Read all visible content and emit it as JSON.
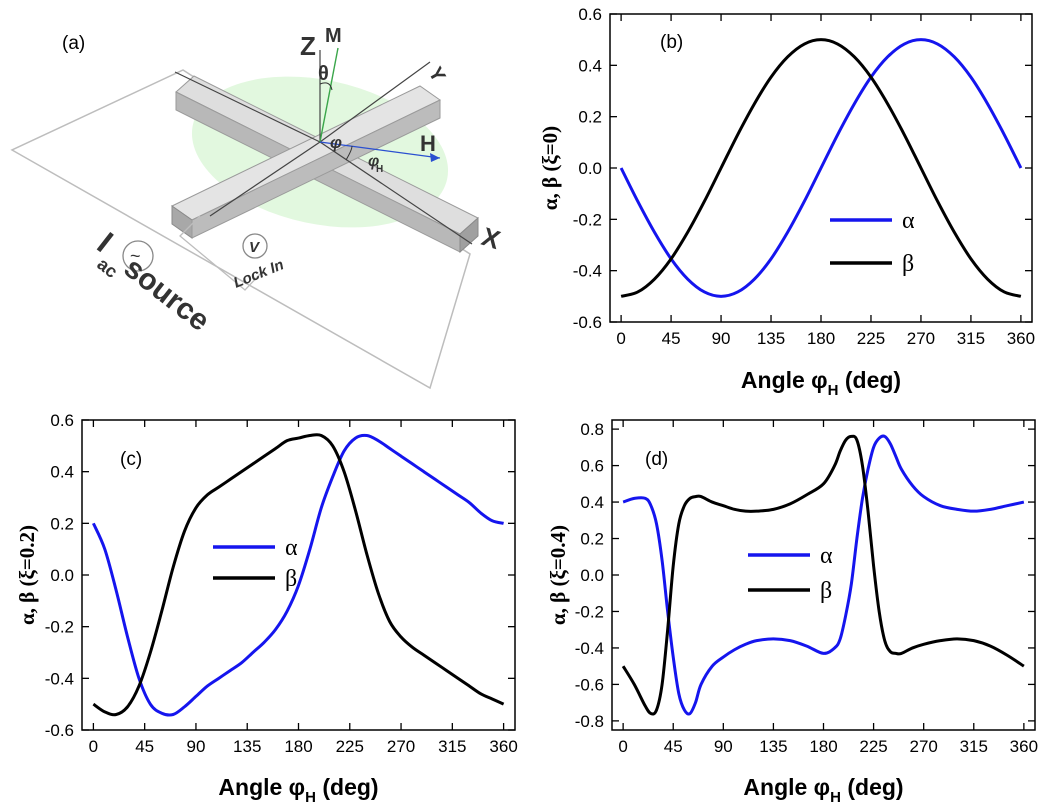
{
  "panel_a": {
    "label": "(a)",
    "axis_z": "Z",
    "magnetization": "M",
    "theta": "θ",
    "axis_y": "Y",
    "field": "H",
    "phi": "φ",
    "phi_h": "φ",
    "phi_h_sub": "H",
    "axis_x": "X",
    "voltmeter": "V",
    "lock_in": "Lock In",
    "source_i": "I",
    "source_sub": "ac",
    "source_word": "source",
    "tilde": "~"
  },
  "colors": {
    "alpha": "#1515ee",
    "beta": "#000000",
    "disc": "#dff7dc",
    "bar": "#c9c9c9"
  },
  "chart_data": [
    {
      "id": "b",
      "type": "line",
      "label": "(b)",
      "xlabel": "Angle φ",
      "xlabel_sub": "H",
      "xlabel_unit": " (deg)",
      "ylabel": "α, β (ξ=0)",
      "xlim": [
        -10,
        370
      ],
      "ylim": [
        -0.6,
        0.6
      ],
      "xticks": [
        "0",
        "45",
        "90",
        "135",
        "180",
        "225",
        "270",
        "315",
        "360"
      ],
      "yticks": [
        "-0.6",
        "-0.4",
        "-0.2",
        "0.0",
        "0.2",
        "0.4",
        "0.6"
      ],
      "legend": [
        "α",
        "β"
      ],
      "x": [
        0,
        15,
        30,
        45,
        60,
        75,
        90,
        105,
        120,
        135,
        150,
        165,
        180,
        195,
        210,
        225,
        240,
        255,
        270,
        285,
        300,
        315,
        330,
        345,
        360
      ],
      "series": [
        {
          "name": "α",
          "values": [
            0.0,
            -0.13,
            -0.25,
            -0.354,
            -0.433,
            -0.483,
            -0.5,
            -0.483,
            -0.433,
            -0.354,
            -0.25,
            -0.13,
            0.0,
            0.13,
            0.25,
            0.354,
            0.433,
            0.483,
            0.5,
            0.483,
            0.433,
            0.354,
            0.25,
            0.13,
            0.0
          ]
        },
        {
          "name": "β",
          "values": [
            -0.5,
            -0.483,
            -0.433,
            -0.354,
            -0.25,
            -0.13,
            0.0,
            0.13,
            0.25,
            0.354,
            0.433,
            0.483,
            0.5,
            0.483,
            0.433,
            0.354,
            0.25,
            0.13,
            0.0,
            -0.13,
            -0.25,
            -0.354,
            -0.433,
            -0.483,
            -0.5
          ]
        }
      ]
    },
    {
      "id": "c",
      "type": "line",
      "label": "(c)",
      "xlabel": "Angle φ",
      "xlabel_sub": "H",
      "xlabel_unit": " (deg)",
      "ylabel": "α, β (ξ=0.2)",
      "xlim": [
        -10,
        370
      ],
      "ylim": [
        -0.6,
        0.6
      ],
      "xticks": [
        "0",
        "45",
        "90",
        "135",
        "180",
        "225",
        "270",
        "315",
        "360"
      ],
      "yticks": [
        "-0.6",
        "-0.4",
        "-0.2",
        "0.0",
        "0.2",
        "0.4",
        "0.6"
      ],
      "legend": [
        "α",
        "β"
      ],
      "x": [
        0,
        10,
        20,
        30,
        40,
        50,
        60,
        70,
        80,
        90,
        100,
        110,
        120,
        130,
        140,
        150,
        160,
        170,
        180,
        190,
        200,
        210,
        220,
        230,
        240,
        250,
        260,
        270,
        280,
        290,
        300,
        310,
        320,
        330,
        340,
        350,
        360
      ],
      "series": [
        {
          "name": "α",
          "values": [
            0.2,
            0.1,
            -0.06,
            -0.24,
            -0.4,
            -0.5,
            -0.535,
            -0.54,
            -0.51,
            -0.47,
            -0.43,
            -0.4,
            -0.37,
            -0.34,
            -0.3,
            -0.26,
            -0.21,
            -0.14,
            -0.04,
            0.1,
            0.26,
            0.38,
            0.48,
            0.53,
            0.54,
            0.52,
            0.49,
            0.46,
            0.43,
            0.4,
            0.37,
            0.34,
            0.31,
            0.28,
            0.24,
            0.21,
            0.2
          ]
        },
        {
          "name": "β",
          "values": [
            -0.5,
            -0.53,
            -0.54,
            -0.51,
            -0.43,
            -0.3,
            -0.14,
            0.03,
            0.17,
            0.26,
            0.31,
            0.34,
            0.37,
            0.4,
            0.43,
            0.46,
            0.49,
            0.52,
            0.53,
            0.54,
            0.54,
            0.5,
            0.4,
            0.25,
            0.08,
            -0.07,
            -0.18,
            -0.24,
            -0.28,
            -0.31,
            -0.34,
            -0.37,
            -0.4,
            -0.43,
            -0.46,
            -0.48,
            -0.5
          ]
        }
      ]
    },
    {
      "id": "d",
      "type": "line",
      "label": "(d)",
      "xlabel": "Angle φ",
      "xlabel_sub": "H",
      "xlabel_unit": " (deg)",
      "ylabel": "α, β (ξ=0.4)",
      "xlim": [
        -10,
        370
      ],
      "ylim": [
        -0.85,
        0.85
      ],
      "xticks": [
        "0",
        "45",
        "90",
        "135",
        "180",
        "225",
        "270",
        "315",
        "360"
      ],
      "yticks": [
        "-0.8",
        "-0.6",
        "-0.4",
        "-0.2",
        "0.0",
        "0.2",
        "0.4",
        "0.6",
        "0.8"
      ],
      "legend": [
        "α",
        "β"
      ],
      "x": [
        0,
        10,
        20,
        25,
        30,
        35,
        40,
        45,
        50,
        55,
        60,
        65,
        70,
        80,
        90,
        100,
        110,
        120,
        135,
        150,
        165,
        180,
        190,
        195,
        200,
        205,
        210,
        215,
        220,
        225,
        230,
        235,
        240,
        245,
        250,
        260,
        270,
        285,
        300,
        315,
        330,
        345,
        360
      ],
      "series": [
        {
          "name": "α",
          "values": [
            0.4,
            0.42,
            0.42,
            0.38,
            0.28,
            0.08,
            -0.2,
            -0.45,
            -0.65,
            -0.74,
            -0.76,
            -0.7,
            -0.6,
            -0.5,
            -0.45,
            -0.41,
            -0.38,
            -0.36,
            -0.35,
            -0.36,
            -0.39,
            -0.43,
            -0.4,
            -0.35,
            -0.22,
            -0.05,
            0.2,
            0.42,
            0.58,
            0.7,
            0.75,
            0.76,
            0.72,
            0.65,
            0.58,
            0.49,
            0.43,
            0.38,
            0.36,
            0.35,
            0.36,
            0.38,
            0.4
          ]
        },
        {
          "name": "β",
          "values": [
            -0.5,
            -0.6,
            -0.72,
            -0.76,
            -0.74,
            -0.6,
            -0.3,
            0.05,
            0.28,
            0.38,
            0.42,
            0.43,
            0.43,
            0.4,
            0.38,
            0.36,
            0.35,
            0.35,
            0.36,
            0.39,
            0.44,
            0.5,
            0.6,
            0.68,
            0.74,
            0.76,
            0.74,
            0.6,
            0.35,
            0.05,
            -0.2,
            -0.36,
            -0.42,
            -0.43,
            -0.43,
            -0.4,
            -0.38,
            -0.36,
            -0.35,
            -0.36,
            -0.39,
            -0.44,
            -0.5
          ]
        }
      ]
    }
  ]
}
